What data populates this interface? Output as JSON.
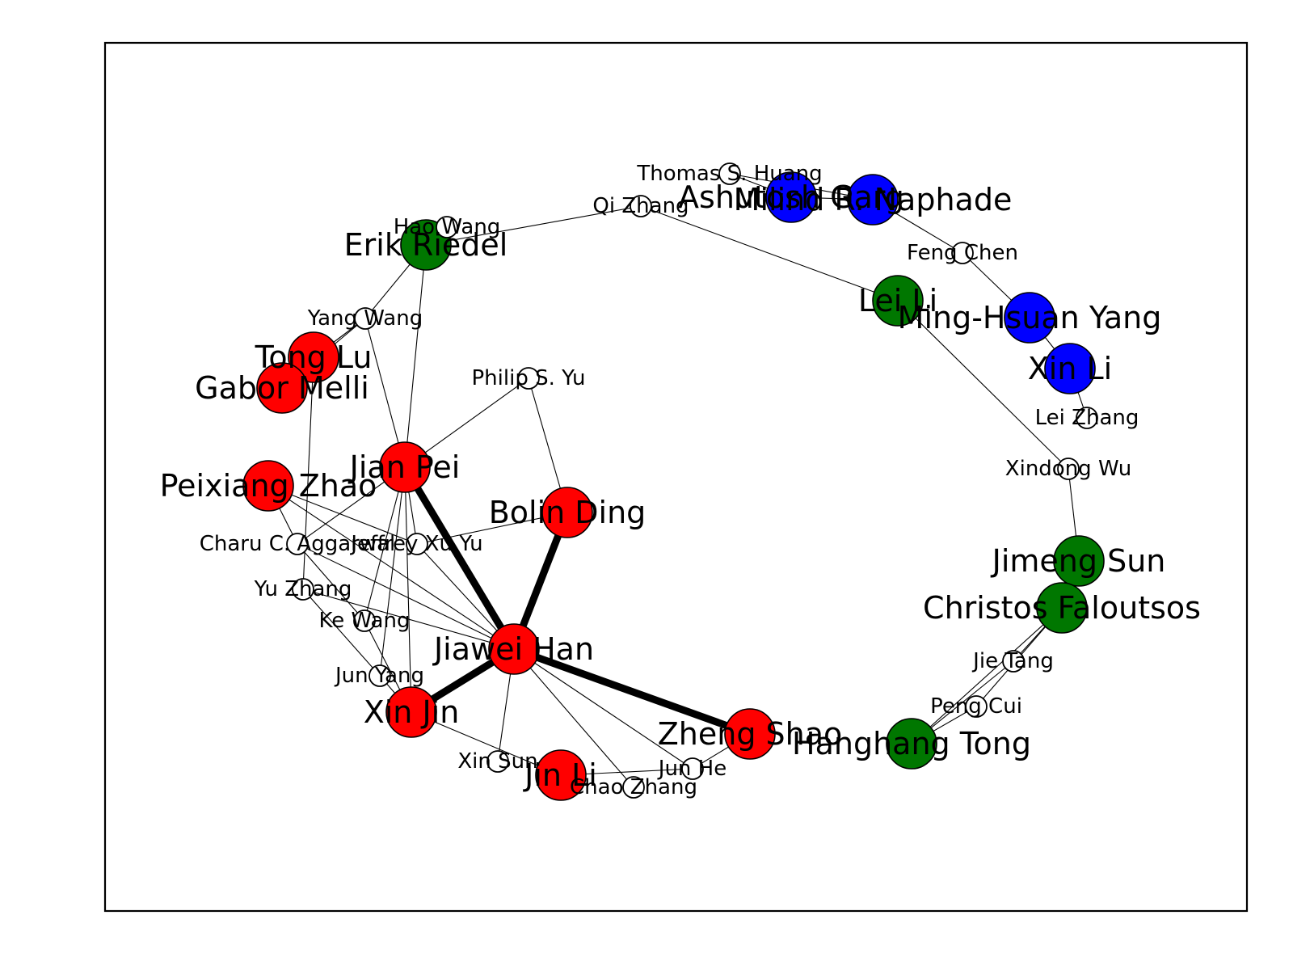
{
  "graph": {
    "colors": {
      "red": "#ff0000",
      "green": "#007700",
      "blue": "#0000ff",
      "white": "#ffffff",
      "edge": "#000000"
    },
    "nodes": [
      {
        "id": "jiawei_han",
        "label": "Jiawei Han",
        "kind": "big",
        "color": "red"
      },
      {
        "id": "jian_pei",
        "label": "Jian Pei",
        "kind": "big",
        "color": "red"
      },
      {
        "id": "bolin_ding",
        "label": "Bolin Ding",
        "kind": "big",
        "color": "red"
      },
      {
        "id": "xin_jin",
        "label": "Xin Jin",
        "kind": "big",
        "color": "red"
      },
      {
        "id": "zheng_shao",
        "label": "Zheng Shao",
        "kind": "big",
        "color": "red"
      },
      {
        "id": "jin_li",
        "label": "Jin Li",
        "kind": "big",
        "color": "red"
      },
      {
        "id": "peixiang_zhao",
        "label": "Peixiang Zhao",
        "kind": "big",
        "color": "red"
      },
      {
        "id": "tong_lu",
        "label": "Tong Lu",
        "kind": "big",
        "color": "red"
      },
      {
        "id": "gabor_melli",
        "label": "Gabor Melli",
        "kind": "big",
        "color": "red"
      },
      {
        "id": "erik_riedel",
        "label": "Erik Riedel",
        "kind": "big",
        "color": "green"
      },
      {
        "id": "lei_li",
        "label": "Lei Li",
        "kind": "big",
        "color": "green"
      },
      {
        "id": "jimeng_sun",
        "label": "Jimeng Sun",
        "kind": "big",
        "color": "green"
      },
      {
        "id": "christos_faloutsos",
        "label": "Christos Faloutsos",
        "kind": "big",
        "color": "green"
      },
      {
        "id": "hanghang_tong",
        "label": "Hanghang Tong",
        "kind": "big",
        "color": "green"
      },
      {
        "id": "ashutosh_garg",
        "label": "Ashutosh Garg",
        "kind": "big",
        "color": "blue"
      },
      {
        "id": "milind_naphade",
        "label": "Milind R. Naphade",
        "kind": "big",
        "color": "blue"
      },
      {
        "id": "ming_hsuan_yang",
        "label": "Ming-Hsuan Yang",
        "kind": "big",
        "color": "blue"
      },
      {
        "id": "xin_li",
        "label": "Xin Li",
        "kind": "big",
        "color": "blue"
      },
      {
        "id": "thomas_huang",
        "label": "Thomas S. Huang",
        "kind": "small",
        "color": "white"
      },
      {
        "id": "qi_zhang",
        "label": "Qi Zhang",
        "kind": "small",
        "color": "white"
      },
      {
        "id": "hao_wang",
        "label": "Hao Wang",
        "kind": "small",
        "color": "white"
      },
      {
        "id": "feng_chen",
        "label": "Feng Chen",
        "kind": "small",
        "color": "white"
      },
      {
        "id": "yang_wang",
        "label": "Yang Wang",
        "kind": "small",
        "color": "white"
      },
      {
        "id": "philip_yu",
        "label": "Philip S. Yu",
        "kind": "small",
        "color": "white"
      },
      {
        "id": "lei_zhang",
        "label": "Lei Zhang",
        "kind": "small",
        "color": "white"
      },
      {
        "id": "xindong_wu",
        "label": "Xindong Wu",
        "kind": "small",
        "color": "white"
      },
      {
        "id": "charu_aggarwal",
        "label": "Charu C. Aggarwal",
        "kind": "small",
        "color": "white"
      },
      {
        "id": "jeffrey_yu",
        "label": "Jeffrey Xu Yu",
        "kind": "small",
        "color": "white"
      },
      {
        "id": "yu_zhang",
        "label": "Yu Zhang",
        "kind": "small",
        "color": "white"
      },
      {
        "id": "ke_wang",
        "label": "Ke Wang",
        "kind": "small",
        "color": "white"
      },
      {
        "id": "jun_yang",
        "label": "Jun Yang",
        "kind": "small",
        "color": "white"
      },
      {
        "id": "jie_tang",
        "label": "Jie Tang",
        "kind": "small",
        "color": "white"
      },
      {
        "id": "peng_cui",
        "label": "Peng Cui",
        "kind": "small",
        "color": "white"
      },
      {
        "id": "xin_sun",
        "label": "Xin Sun",
        "kind": "small",
        "color": "white"
      },
      {
        "id": "jun_he",
        "label": "Jun He",
        "kind": "small",
        "color": "white"
      },
      {
        "id": "chao_zhang",
        "label": "Chao Zhang",
        "kind": "small",
        "color": "white"
      }
    ],
    "edges": [
      {
        "source": "jiawei_han",
        "target": "jian_pei",
        "weight": "heavy"
      },
      {
        "source": "jiawei_han",
        "target": "bolin_ding",
        "weight": "heavy"
      },
      {
        "source": "jiawei_han",
        "target": "xin_jin",
        "weight": "heavy"
      },
      {
        "source": "jiawei_han",
        "target": "zheng_shao",
        "weight": "heavy"
      },
      {
        "source": "jiawei_han",
        "target": "peixiang_zhao",
        "weight": "light"
      },
      {
        "source": "jiawei_han",
        "target": "charu_aggarwal",
        "weight": "light"
      },
      {
        "source": "jiawei_han",
        "target": "jeffrey_yu",
        "weight": "light"
      },
      {
        "source": "jiawei_han",
        "target": "yu_zhang",
        "weight": "light"
      },
      {
        "source": "jiawei_han",
        "target": "xin_sun",
        "weight": "light"
      },
      {
        "source": "jiawei_han",
        "target": "jun_he",
        "weight": "light"
      },
      {
        "source": "jiawei_han",
        "target": "chao_zhang",
        "weight": "light"
      },
      {
        "source": "jian_pei",
        "target": "philip_yu",
        "weight": "light"
      },
      {
        "source": "jian_pei",
        "target": "erik_riedel",
        "weight": "light"
      },
      {
        "source": "jian_pei",
        "target": "yang_wang",
        "weight": "light"
      },
      {
        "source": "jian_pei",
        "target": "charu_aggarwal",
        "weight": "light"
      },
      {
        "source": "jian_pei",
        "target": "jeffrey_yu",
        "weight": "light"
      },
      {
        "source": "jian_pei",
        "target": "ke_wang",
        "weight": "light"
      },
      {
        "source": "jian_pei",
        "target": "jun_yang",
        "weight": "light"
      },
      {
        "source": "jian_pei",
        "target": "xin_jin",
        "weight": "light"
      },
      {
        "source": "philip_yu",
        "target": "bolin_ding",
        "weight": "light"
      },
      {
        "source": "bolin_ding",
        "target": "jeffrey_yu",
        "weight": "light"
      },
      {
        "source": "peixiang_zhao",
        "target": "charu_aggarwal",
        "weight": "light"
      },
      {
        "source": "peixiang_zhao",
        "target": "jeffrey_yu",
        "weight": "light"
      },
      {
        "source": "tong_lu",
        "target": "yang_wang",
        "weight": "light"
      },
      {
        "source": "gabor_melli",
        "target": "yang_wang",
        "weight": "light"
      },
      {
        "source": "tong_lu",
        "target": "yu_zhang",
        "weight": "light"
      },
      {
        "source": "yang_wang",
        "target": "erik_riedel",
        "weight": "light"
      },
      {
        "source": "erik_riedel",
        "target": "hao_wang",
        "weight": "light"
      },
      {
        "source": "erik_riedel",
        "target": "qi_zhang",
        "weight": "light"
      },
      {
        "source": "qi_zhang",
        "target": "lei_li",
        "weight": "light"
      },
      {
        "source": "thomas_huang",
        "target": "ashutosh_garg",
        "weight": "light"
      },
      {
        "source": "thomas_huang",
        "target": "milind_naphade",
        "weight": "light"
      },
      {
        "source": "ashutosh_garg",
        "target": "milind_naphade",
        "weight": "light"
      },
      {
        "source": "milind_naphade",
        "target": "feng_chen",
        "weight": "light"
      },
      {
        "source": "feng_chen",
        "target": "ming_hsuan_yang",
        "weight": "light"
      },
      {
        "source": "ming_hsuan_yang",
        "target": "xin_li",
        "weight": "light"
      },
      {
        "source": "xin_li",
        "target": "lei_zhang",
        "weight": "light"
      },
      {
        "source": "lei_li",
        "target": "xindong_wu",
        "weight": "light"
      },
      {
        "source": "xindong_wu",
        "target": "jimeng_sun",
        "weight": "light"
      },
      {
        "source": "jimeng_sun",
        "target": "christos_faloutsos",
        "weight": "light"
      },
      {
        "source": "christos_faloutsos",
        "target": "jie_tang",
        "weight": "light"
      },
      {
        "source": "christos_faloutsos",
        "target": "peng_cui",
        "weight": "light"
      },
      {
        "source": "christos_faloutsos",
        "target": "hanghang_tong",
        "weight": "light"
      },
      {
        "source": "jie_tang",
        "target": "hanghang_tong",
        "weight": "light"
      },
      {
        "source": "peng_cui",
        "target": "hanghang_tong",
        "weight": "light"
      },
      {
        "source": "xin_jin",
        "target": "jun_yang",
        "weight": "light"
      },
      {
        "source": "xin_jin",
        "target": "ke_wang",
        "weight": "light"
      },
      {
        "source": "xin_jin",
        "target": "jin_li",
        "weight": "light"
      },
      {
        "source": "jin_li",
        "target": "jun_he",
        "weight": "light"
      },
      {
        "source": "zheng_shao",
        "target": "jun_he",
        "weight": "light"
      },
      {
        "source": "yu_zhang",
        "target": "jun_yang",
        "weight": "light"
      },
      {
        "source": "charu_aggarwal",
        "target": "ke_wang",
        "weight": "light"
      }
    ]
  }
}
